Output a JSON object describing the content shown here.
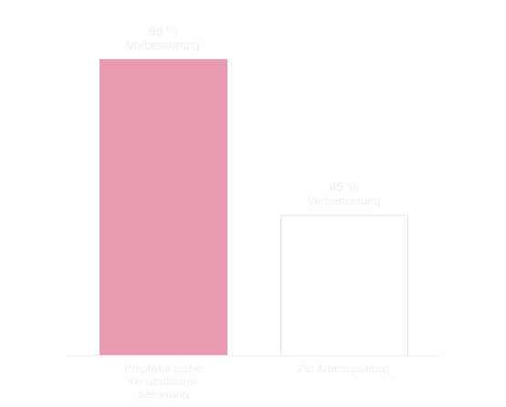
{
  "chart_data": {
    "type": "bar",
    "categories": [
      "Prophylaktische Konstruktions-Steuerung",
      "Zur Arbeitsplanung"
    ],
    "values": [
      95,
      45
    ],
    "data_labels": [
      {
        "value": "95 %",
        "caption": "Verbesserung"
      },
      {
        "value": "45 %",
        "caption": "Verbesserung"
      }
    ],
    "category_lines": [
      [
        "Prophylaktische",
        "Konstruktions-",
        "Steuerung"
      ],
      [
        "Zur Arbeitsplanung"
      ]
    ],
    "ylim": [
      0,
      100
    ],
    "grid": false,
    "legend": "none",
    "colors": {
      "bar_fill": [
        "#e89bb0",
        "#ffffff"
      ],
      "bar_stroke": [
        "#e89bb0",
        "#e5e5e5"
      ],
      "label_text": "#f0f0f0",
      "baseline": "#eeeeee"
    }
  }
}
